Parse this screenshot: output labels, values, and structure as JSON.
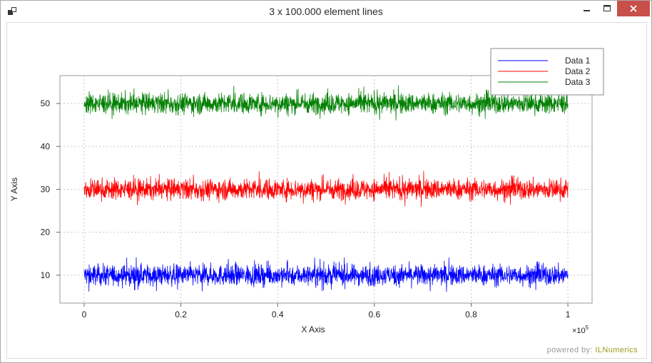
{
  "window": {
    "title": "3 x 100.000 element lines",
    "accent_close": "#c7504a"
  },
  "icons": {
    "app": "app-icon",
    "minimize": "minimize-icon",
    "maximize": "maximize-icon",
    "close": "close-icon"
  },
  "footer": {
    "powered_label": "powered by:",
    "brand": "ILNumerics"
  },
  "chart_data": {
    "type": "line",
    "title": "",
    "xlabel": "X Axis",
    "ylabel": "Y Axis",
    "x_exponent_label": "×10",
    "x_exponent_power": "5",
    "xlim": [
      -0.05,
      1.05
    ],
    "ylim": [
      3.5,
      56.5
    ],
    "xticks": [
      0,
      0.2,
      0.4,
      0.6,
      0.8,
      1
    ],
    "xtick_labels": [
      "0",
      "0.2",
      "0.4",
      "0.6",
      "0.8",
      "1"
    ],
    "yticks": [
      10,
      20,
      30,
      40,
      50
    ],
    "ytick_labels": [
      "10",
      "20",
      "30",
      "40",
      "50"
    ],
    "grid": true,
    "legend_position": "top-right",
    "x_range": [
      0,
      1
    ],
    "series": [
      {
        "name": "Data 1",
        "color": "#0000ff",
        "center": 10,
        "spread": 1.2,
        "peak": 4.2
      },
      {
        "name": "Data 2",
        "color": "#ff0000",
        "center": 30,
        "spread": 1.2,
        "peak": 4.4
      },
      {
        "name": "Data 3",
        "color": "#008000",
        "center": 50,
        "spread": 1.2,
        "peak": 4.3
      }
    ]
  }
}
